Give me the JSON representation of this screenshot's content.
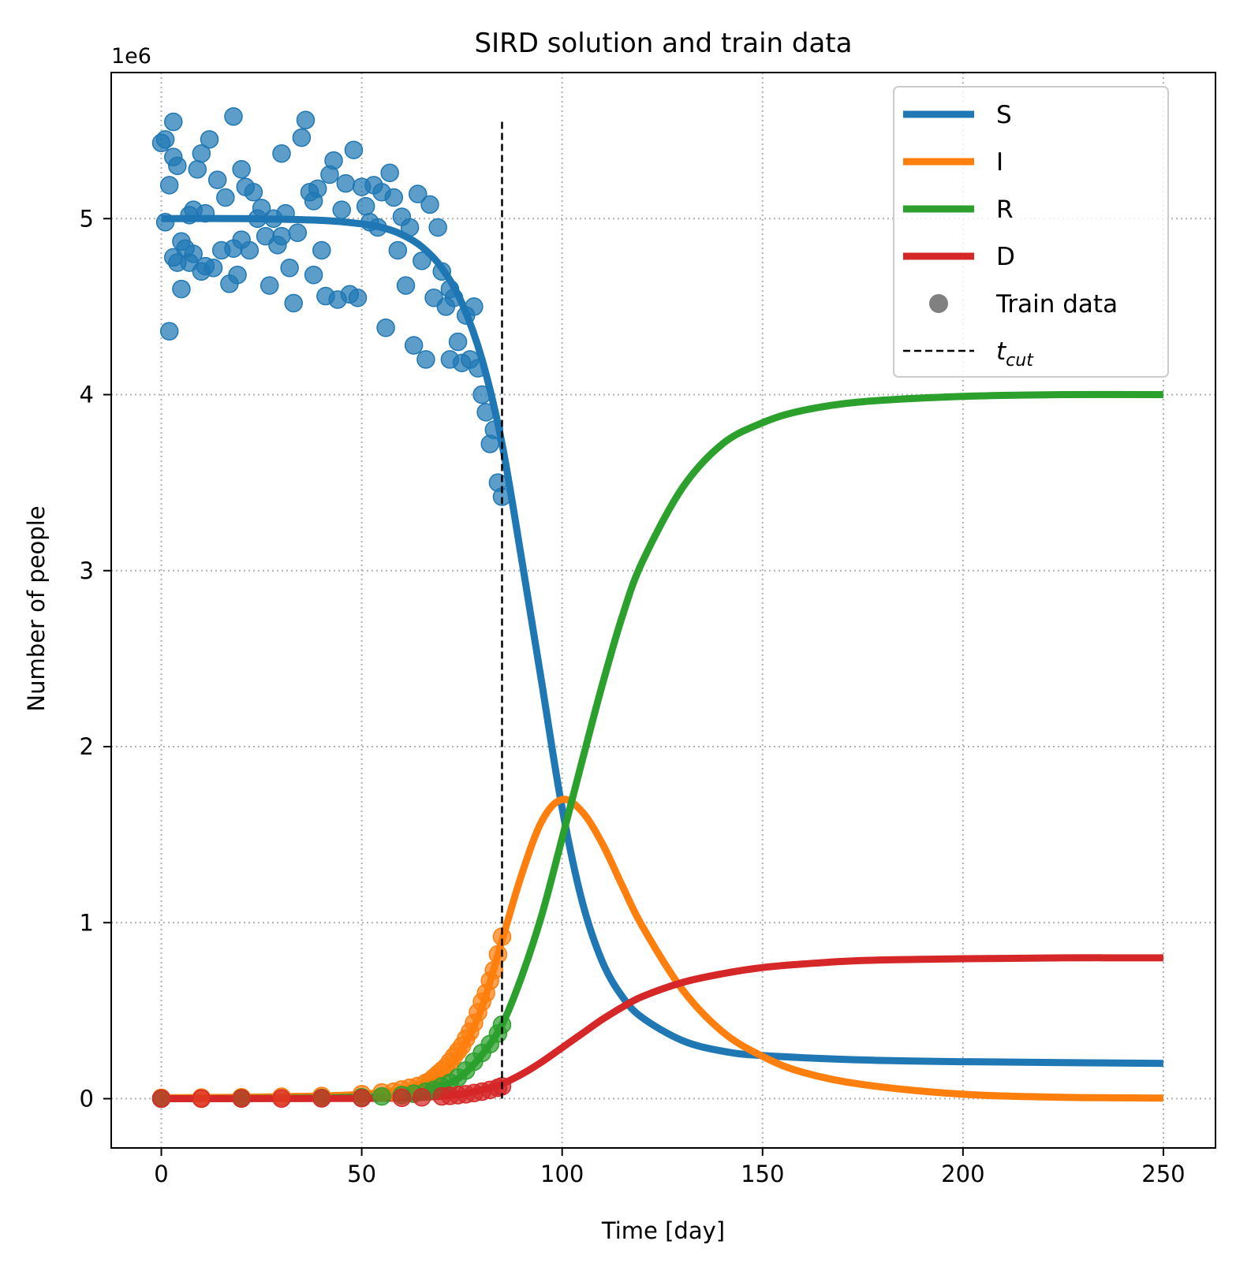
{
  "chart_data": {
    "type": "line",
    "title": "SIRD solution and train data",
    "xlabel": "Time [day]",
    "ylabel": "Number of people",
    "offset_label": "1e6",
    "xlim": [
      -12.5,
      263
    ],
    "ylim": [
      -0.28,
      5.83
    ],
    "xticks": [
      0,
      50,
      100,
      150,
      200,
      250
    ],
    "yticks": [
      0,
      1,
      2,
      3,
      4,
      5
    ],
    "grid": true,
    "legend_position": "top-right",
    "t_cut": 85,
    "t_cut_range": [
      0.0,
      5.55
    ],
    "colors": {
      "S": "#1f77b4",
      "I": "#ff7f0e",
      "R": "#2ca02c",
      "D": "#d62728",
      "train": "#808080",
      "grid": "#b0b0b0"
    },
    "legend": [
      {
        "key": "S",
        "label": "S",
        "kind": "line"
      },
      {
        "key": "I",
        "label": "I",
        "kind": "line"
      },
      {
        "key": "R",
        "label": "R",
        "kind": "line"
      },
      {
        "key": "D",
        "label": "D",
        "kind": "line"
      },
      {
        "key": "train",
        "label": "Train data",
        "kind": "marker"
      },
      {
        "key": "tcut",
        "label": "t",
        "sub": "cut",
        "kind": "dashed"
      }
    ],
    "series": [
      {
        "name": "S",
        "x": [
          0,
          20,
          40,
          50,
          55,
          60,
          65,
          70,
          75,
          80,
          85,
          90,
          95,
          100,
          105,
          110,
          115,
          120,
          130,
          140,
          150,
          175,
          200,
          225,
          250
        ],
        "values": [
          5.0,
          5.0,
          4.99,
          4.97,
          4.95,
          4.91,
          4.84,
          4.72,
          4.52,
          4.2,
          3.72,
          3.05,
          2.35,
          1.65,
          1.12,
          0.78,
          0.58,
          0.46,
          0.33,
          0.27,
          0.245,
          0.22,
          0.21,
          0.205,
          0.2
        ]
      },
      {
        "name": "I",
        "x": [
          0,
          20,
          40,
          50,
          60,
          65,
          70,
          75,
          80,
          85,
          90,
          95,
          100,
          105,
          110,
          115,
          120,
          130,
          140,
          150,
          160,
          175,
          200,
          225,
          250
        ],
        "values": [
          0.005,
          0.008,
          0.015,
          0.025,
          0.05,
          0.085,
          0.15,
          0.28,
          0.52,
          0.9,
          1.28,
          1.58,
          1.7,
          1.63,
          1.45,
          1.21,
          0.98,
          0.62,
          0.38,
          0.24,
          0.15,
          0.08,
          0.025,
          0.008,
          0.003
        ]
      },
      {
        "name": "R",
        "x": [
          0,
          40,
          60,
          65,
          70,
          75,
          80,
          85,
          90,
          95,
          100,
          105,
          110,
          115,
          120,
          130,
          140,
          150,
          160,
          175,
          200,
          225,
          250
        ],
        "values": [
          0.0,
          0.004,
          0.02,
          0.04,
          0.07,
          0.13,
          0.25,
          0.42,
          0.7,
          1.05,
          1.48,
          1.92,
          2.35,
          2.74,
          3.05,
          3.47,
          3.72,
          3.84,
          3.91,
          3.96,
          3.99,
          4.0,
          4.0
        ]
      },
      {
        "name": "D",
        "x": [
          0,
          40,
          60,
          70,
          75,
          80,
          85,
          90,
          95,
          100,
          105,
          110,
          115,
          120,
          130,
          140,
          150,
          160,
          175,
          200,
          225,
          250
        ],
        "values": [
          0.0,
          0.001,
          0.004,
          0.014,
          0.026,
          0.05,
          0.084,
          0.14,
          0.21,
          0.29,
          0.37,
          0.45,
          0.52,
          0.58,
          0.66,
          0.71,
          0.745,
          0.765,
          0.785,
          0.795,
          0.8,
          0.8
        ]
      }
    ],
    "train_data": {
      "S": {
        "x": [
          0,
          1,
          1,
          2,
          2,
          3,
          3,
          3,
          4,
          4,
          5,
          5,
          6,
          7,
          7,
          8,
          8,
          9,
          10,
          10,
          11,
          11,
          12,
          13,
          14,
          15,
          16,
          17,
          18,
          18,
          19,
          20,
          20,
          21,
          22,
          23,
          24,
          25,
          26,
          27,
          28,
          29,
          30,
          30,
          31,
          32,
          33,
          34,
          35,
          36,
          37,
          38,
          38,
          39,
          40,
          41,
          42,
          43,
          44,
          45,
          46,
          47,
          48,
          49,
          50,
          51,
          52,
          53,
          54,
          55,
          56,
          57,
          58,
          59,
          60,
          61,
          62,
          63,
          64,
          65,
          66,
          67,
          68,
          69,
          70,
          71,
          72,
          72,
          73,
          74,
          75,
          76,
          77,
          78,
          79,
          80,
          81,
          82,
          83,
          84,
          85
        ],
        "values": [
          5.43,
          5.45,
          4.98,
          5.19,
          4.36,
          5.55,
          4.78,
          5.35,
          4.75,
          5.3,
          4.87,
          4.6,
          4.83,
          5.02,
          4.75,
          5.05,
          4.8,
          5.28,
          4.7,
          5.37,
          5.03,
          4.73,
          5.45,
          4.72,
          5.22,
          4.82,
          5.12,
          4.63,
          5.58,
          4.83,
          4.68,
          5.28,
          4.88,
          5.18,
          4.82,
          5.15,
          5.0,
          5.06,
          4.9,
          4.62,
          5.0,
          4.85,
          5.37,
          4.9,
          5.03,
          4.72,
          4.52,
          4.92,
          5.46,
          5.56,
          5.15,
          4.68,
          5.1,
          5.17,
          4.82,
          4.56,
          5.25,
          5.33,
          4.54,
          5.05,
          5.2,
          4.57,
          5.39,
          4.55,
          5.18,
          5.07,
          4.98,
          5.19,
          4.95,
          5.15,
          4.38,
          5.26,
          5.12,
          4.82,
          5.01,
          4.62,
          4.95,
          4.28,
          5.14,
          4.76,
          4.2,
          5.08,
          4.55,
          4.95,
          4.7,
          4.5,
          4.2,
          4.6,
          4.55,
          4.3,
          4.18,
          4.45,
          4.2,
          4.5,
          4.15,
          4.0,
          3.9,
          3.72,
          3.8,
          3.5,
          3.42
        ]
      },
      "I": {
        "x": [
          0,
          10,
          20,
          30,
          40,
          50,
          55,
          58,
          60,
          62,
          64,
          66,
          67,
          68,
          69,
          70,
          71,
          72,
          73,
          74,
          75,
          76,
          77,
          78,
          79,
          80,
          81,
          82,
          83,
          84,
          85
        ],
        "values": [
          0.005,
          0.006,
          0.008,
          0.011,
          0.015,
          0.026,
          0.035,
          0.04,
          0.052,
          0.062,
          0.072,
          0.09,
          0.1,
          0.12,
          0.14,
          0.16,
          0.18,
          0.21,
          0.24,
          0.27,
          0.3,
          0.34,
          0.38,
          0.43,
          0.49,
          0.55,
          0.6,
          0.67,
          0.73,
          0.82,
          0.92
        ]
      },
      "R": {
        "x": [
          0,
          20,
          40,
          50,
          55,
          60,
          63,
          66,
          68,
          70,
          72,
          74,
          76,
          78,
          80,
          82,
          84,
          85
        ],
        "values": [
          0.0,
          0.002,
          0.004,
          0.008,
          0.013,
          0.02,
          0.028,
          0.04,
          0.05,
          0.07,
          0.09,
          0.12,
          0.16,
          0.21,
          0.26,
          0.31,
          0.37,
          0.42
        ]
      },
      "D": {
        "x": [
          0,
          10,
          20,
          30,
          40,
          50,
          60,
          65,
          70,
          72,
          74,
          76,
          78,
          80,
          82,
          84,
          85
        ],
        "values": [
          0.0,
          0.0,
          0.001,
          0.001,
          0.002,
          0.003,
          0.005,
          0.008,
          0.013,
          0.016,
          0.02,
          0.025,
          0.032,
          0.04,
          0.05,
          0.062,
          0.07
        ]
      }
    }
  }
}
